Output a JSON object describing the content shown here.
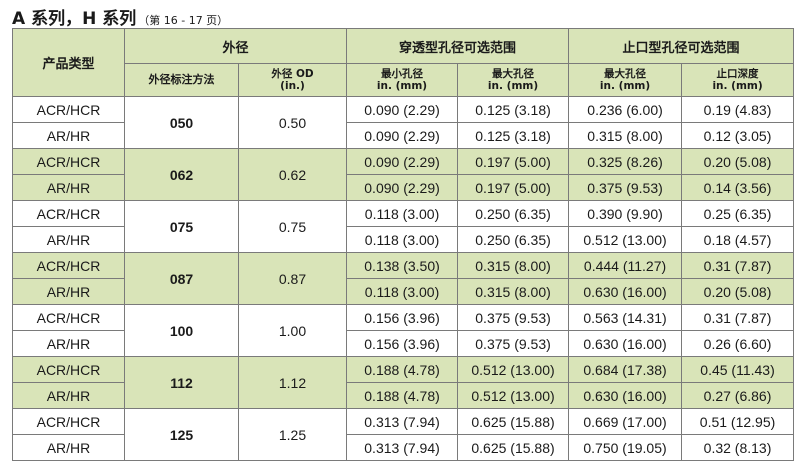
{
  "title": {
    "main": "A 系列，H 系列",
    "sub": "（第 16 - 17 页）"
  },
  "headers": {
    "product_type": "产品类型",
    "outer_dia": "外径",
    "through_bore": "穿透型孔径可选范围",
    "stop_bore": "止口型孔径可选范围",
    "od_code": "外径标注方法",
    "od_in_l1": "外径 OD",
    "od_in_l2": "(in.)",
    "min_bore_l1": "最小孔径",
    "min_bore_l2": "in. (mm)",
    "max_bore_l1": "最大孔径",
    "max_bore_l2": "in. (mm)",
    "stop_max_l1": "最大孔径",
    "stop_max_l2": "in. (mm)",
    "stop_depth_l1": "止口深度",
    "stop_depth_l2": "in. (mm)"
  },
  "rows": [
    {
      "type": "ACR/HCR",
      "dia": "050",
      "od": "0.50",
      "min": "0.090 (2.29)",
      "max": "0.125 (3.18)",
      "smax": "0.236 (6.00)",
      "depth": "0.19 (4.83)"
    },
    {
      "type": "AR/HR",
      "min": "0.090 (2.29)",
      "max": "0.125 (3.18)",
      "smax": "0.315 (8.00)",
      "depth": "0.12 (3.05)"
    },
    {
      "type": "ACR/HCR",
      "dia": "062",
      "od": "0.62",
      "min": "0.090 (2.29)",
      "max": "0.197 (5.00)",
      "smax": "0.325 (8.26)",
      "depth": "0.20 (5.08)"
    },
    {
      "type": "AR/HR",
      "min": "0.090 (2.29)",
      "max": "0.197 (5.00)",
      "smax": "0.375 (9.53)",
      "depth": "0.14 (3.56)"
    },
    {
      "type": "ACR/HCR",
      "dia": "075",
      "od": "0.75",
      "min": "0.118 (3.00)",
      "max": "0.250 (6.35)",
      "smax": "0.390 (9.90)",
      "depth": "0.25 (6.35)"
    },
    {
      "type": "AR/HR",
      "min": "0.118 (3.00)",
      "max": "0.250 (6.35)",
      "smax": "0.512 (13.00)",
      "depth": "0.18 (4.57)"
    },
    {
      "type": "ACR/HCR",
      "dia": "087",
      "od": "0.87",
      "min": "0.138 (3.50)",
      "max": "0.315 (8.00)",
      "smax": "0.444 (11.27)",
      "depth": "0.31 (7.87)"
    },
    {
      "type": "AR/HR",
      "min": "0.118 (3.00)",
      "max": "0.315 (8.00)",
      "smax": "0.630 (16.00)",
      "depth": "0.20 (5.08)"
    },
    {
      "type": "ACR/HCR",
      "dia": "100",
      "od": "1.00",
      "min": "0.156 (3.96)",
      "max": "0.375 (9.53)",
      "smax": "0.563 (14.31)",
      "depth": "0.31 (7.87)"
    },
    {
      "type": "AR/HR",
      "min": "0.156 (3.96)",
      "max": "0.375 (9.53)",
      "smax": "0.630 (16.00)",
      "depth": "0.26 (6.60)"
    },
    {
      "type": "ACR/HCR",
      "dia": "112",
      "od": "1.12",
      "min": "0.188 (4.78)",
      "max": "0.512 (13.00)",
      "smax": "0.684 (17.38)",
      "depth": "0.45 (11.43)"
    },
    {
      "type": "AR/HR",
      "min": "0.188 (4.78)",
      "max": "0.512 (13.00)",
      "smax": "0.630 (16.00)",
      "depth": "0.27 (6.86)"
    },
    {
      "type": "ACR/HCR",
      "dia": "125",
      "od": "1.25",
      "min": "0.313 (7.94)",
      "max": "0.625 (15.88)",
      "smax": "0.669 (17.00)",
      "depth": "0.51 (12.95)"
    },
    {
      "type": "AR/HR",
      "min": "0.313 (7.94)",
      "max": "0.625 (15.88)",
      "smax": "0.750 (19.05)",
      "depth": "0.32 (8.13)"
    }
  ]
}
